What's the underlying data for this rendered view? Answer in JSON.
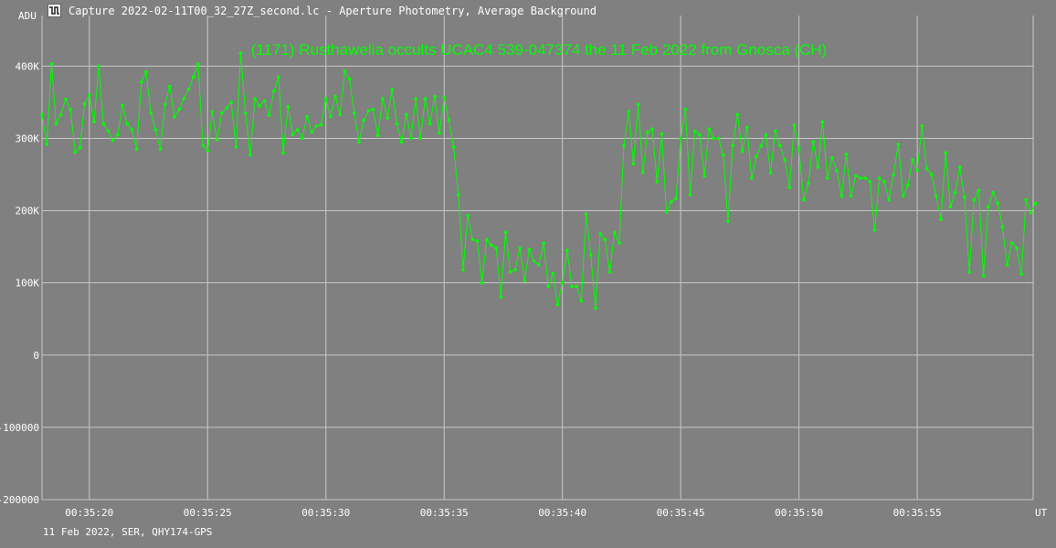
{
  "window": {
    "title": "Capture 2022-02-11T00_32_27Z_second.lc - Aperture Photometry, Average Background",
    "icon": "light-curve-app-icon"
  },
  "colors": {
    "background": "#808080",
    "grid": "#c8c8c8",
    "series": "#00ff00",
    "text": "#ffffff"
  },
  "footer": "11 Feb 2022, SER, QHY174-GPS",
  "chart_data": {
    "type": "line",
    "title": "(1171) Rusthawelia occults UCAC4 539-047374 the 11 Feb 2022 from Gnosca (CH)",
    "ylabel": "ADU",
    "xlabel": "UT",
    "xlim": [
      18.0,
      59.9
    ],
    "ylim": [
      -200000,
      470000
    ],
    "grid": true,
    "x_ticks": [
      {
        "value": 20,
        "label": "00:35:20"
      },
      {
        "value": 25,
        "label": "00:35:25"
      },
      {
        "value": 30,
        "label": "00:35:30"
      },
      {
        "value": 35,
        "label": "00:35:35"
      },
      {
        "value": 40,
        "label": "00:35:40"
      },
      {
        "value": 45,
        "label": "00:35:45"
      },
      {
        "value": 50,
        "label": "00:35:50"
      },
      {
        "value": 55,
        "label": "00:35:55"
      }
    ],
    "y_ticks": [
      {
        "value": 400000,
        "label": "400K"
      },
      {
        "value": 300000,
        "label": "300K"
      },
      {
        "value": 200000,
        "label": "200K"
      },
      {
        "value": 100000,
        "label": "100K"
      },
      {
        "value": 0,
        "label": "0"
      },
      {
        "value": -100000,
        "label": "-100000"
      },
      {
        "value": -200000,
        "label": "-200000"
      }
    ],
    "series": [
      {
        "x_start": 18.0,
        "x_step": 0.2,
        "values": [
          333000,
          292000,
          403000,
          320000,
          333000,
          354000,
          340000,
          281000,
          287000,
          348000,
          360000,
          323000,
          400000,
          320000,
          310000,
          297000,
          305000,
          346000,
          320000,
          312000,
          285000,
          378000,
          392000,
          335000,
          312000,
          285000,
          347000,
          372000,
          330000,
          340000,
          355000,
          368000,
          385000,
          403000,
          290000,
          283000,
          337000,
          298000,
          335000,
          342000,
          350000,
          288000,
          418000,
          335000,
          277000,
          355000,
          345000,
          352000,
          332000,
          365000,
          385000,
          280000,
          344000,
          305000,
          312000,
          300000,
          330000,
          309000,
          317000,
          319000,
          355000,
          330000,
          358000,
          333000,
          393000,
          382000,
          335000,
          295000,
          325000,
          338000,
          340000,
          304000,
          355000,
          328000,
          368000,
          320000,
          295000,
          333000,
          300000,
          355000,
          300000,
          355000,
          320000,
          358000,
          307000,
          357000,
          325000,
          288000,
          222000,
          118000,
          193000,
          160000,
          158000,
          100000,
          160000,
          152000,
          148000,
          80000,
          170000,
          115000,
          118000,
          148000,
          103000,
          146000,
          130000,
          125000,
          155000,
          95000,
          113000,
          70000,
          100000,
          145000,
          95000,
          95000,
          75000,
          195000,
          138000,
          65000,
          168000,
          160000,
          115000,
          170000,
          155000,
          290000,
          337000,
          265000,
          347000,
          253000,
          308000,
          313000,
          240000,
          306000,
          198000,
          212000,
          217000,
          300000,
          340000,
          222000,
          310000,
          305000,
          248000,
          313000,
          300000,
          300000,
          277000,
          185000,
          290000,
          333000,
          282000,
          315000,
          245000,
          275000,
          290000,
          305000,
          252000,
          310000,
          290000,
          270000,
          232000,
          318000,
          285000,
          215000,
          238000,
          295000,
          260000,
          323000,
          245000,
          273000,
          255000,
          220000,
          278000,
          220000,
          248000,
          245000,
          245000,
          240000,
          173000,
          245000,
          240000,
          215000,
          250000,
          292000,
          220000,
          235000,
          270000,
          256000,
          317000,
          258000,
          250000,
          220000,
          188000,
          280000,
          205000,
          225000,
          260000,
          218000,
          115000,
          215000,
          228000,
          110000,
          205000,
          225000,
          210000,
          178000,
          125000,
          155000,
          148000,
          112000,
          215000,
          197000,
          210000
        ]
      }
    ]
  }
}
